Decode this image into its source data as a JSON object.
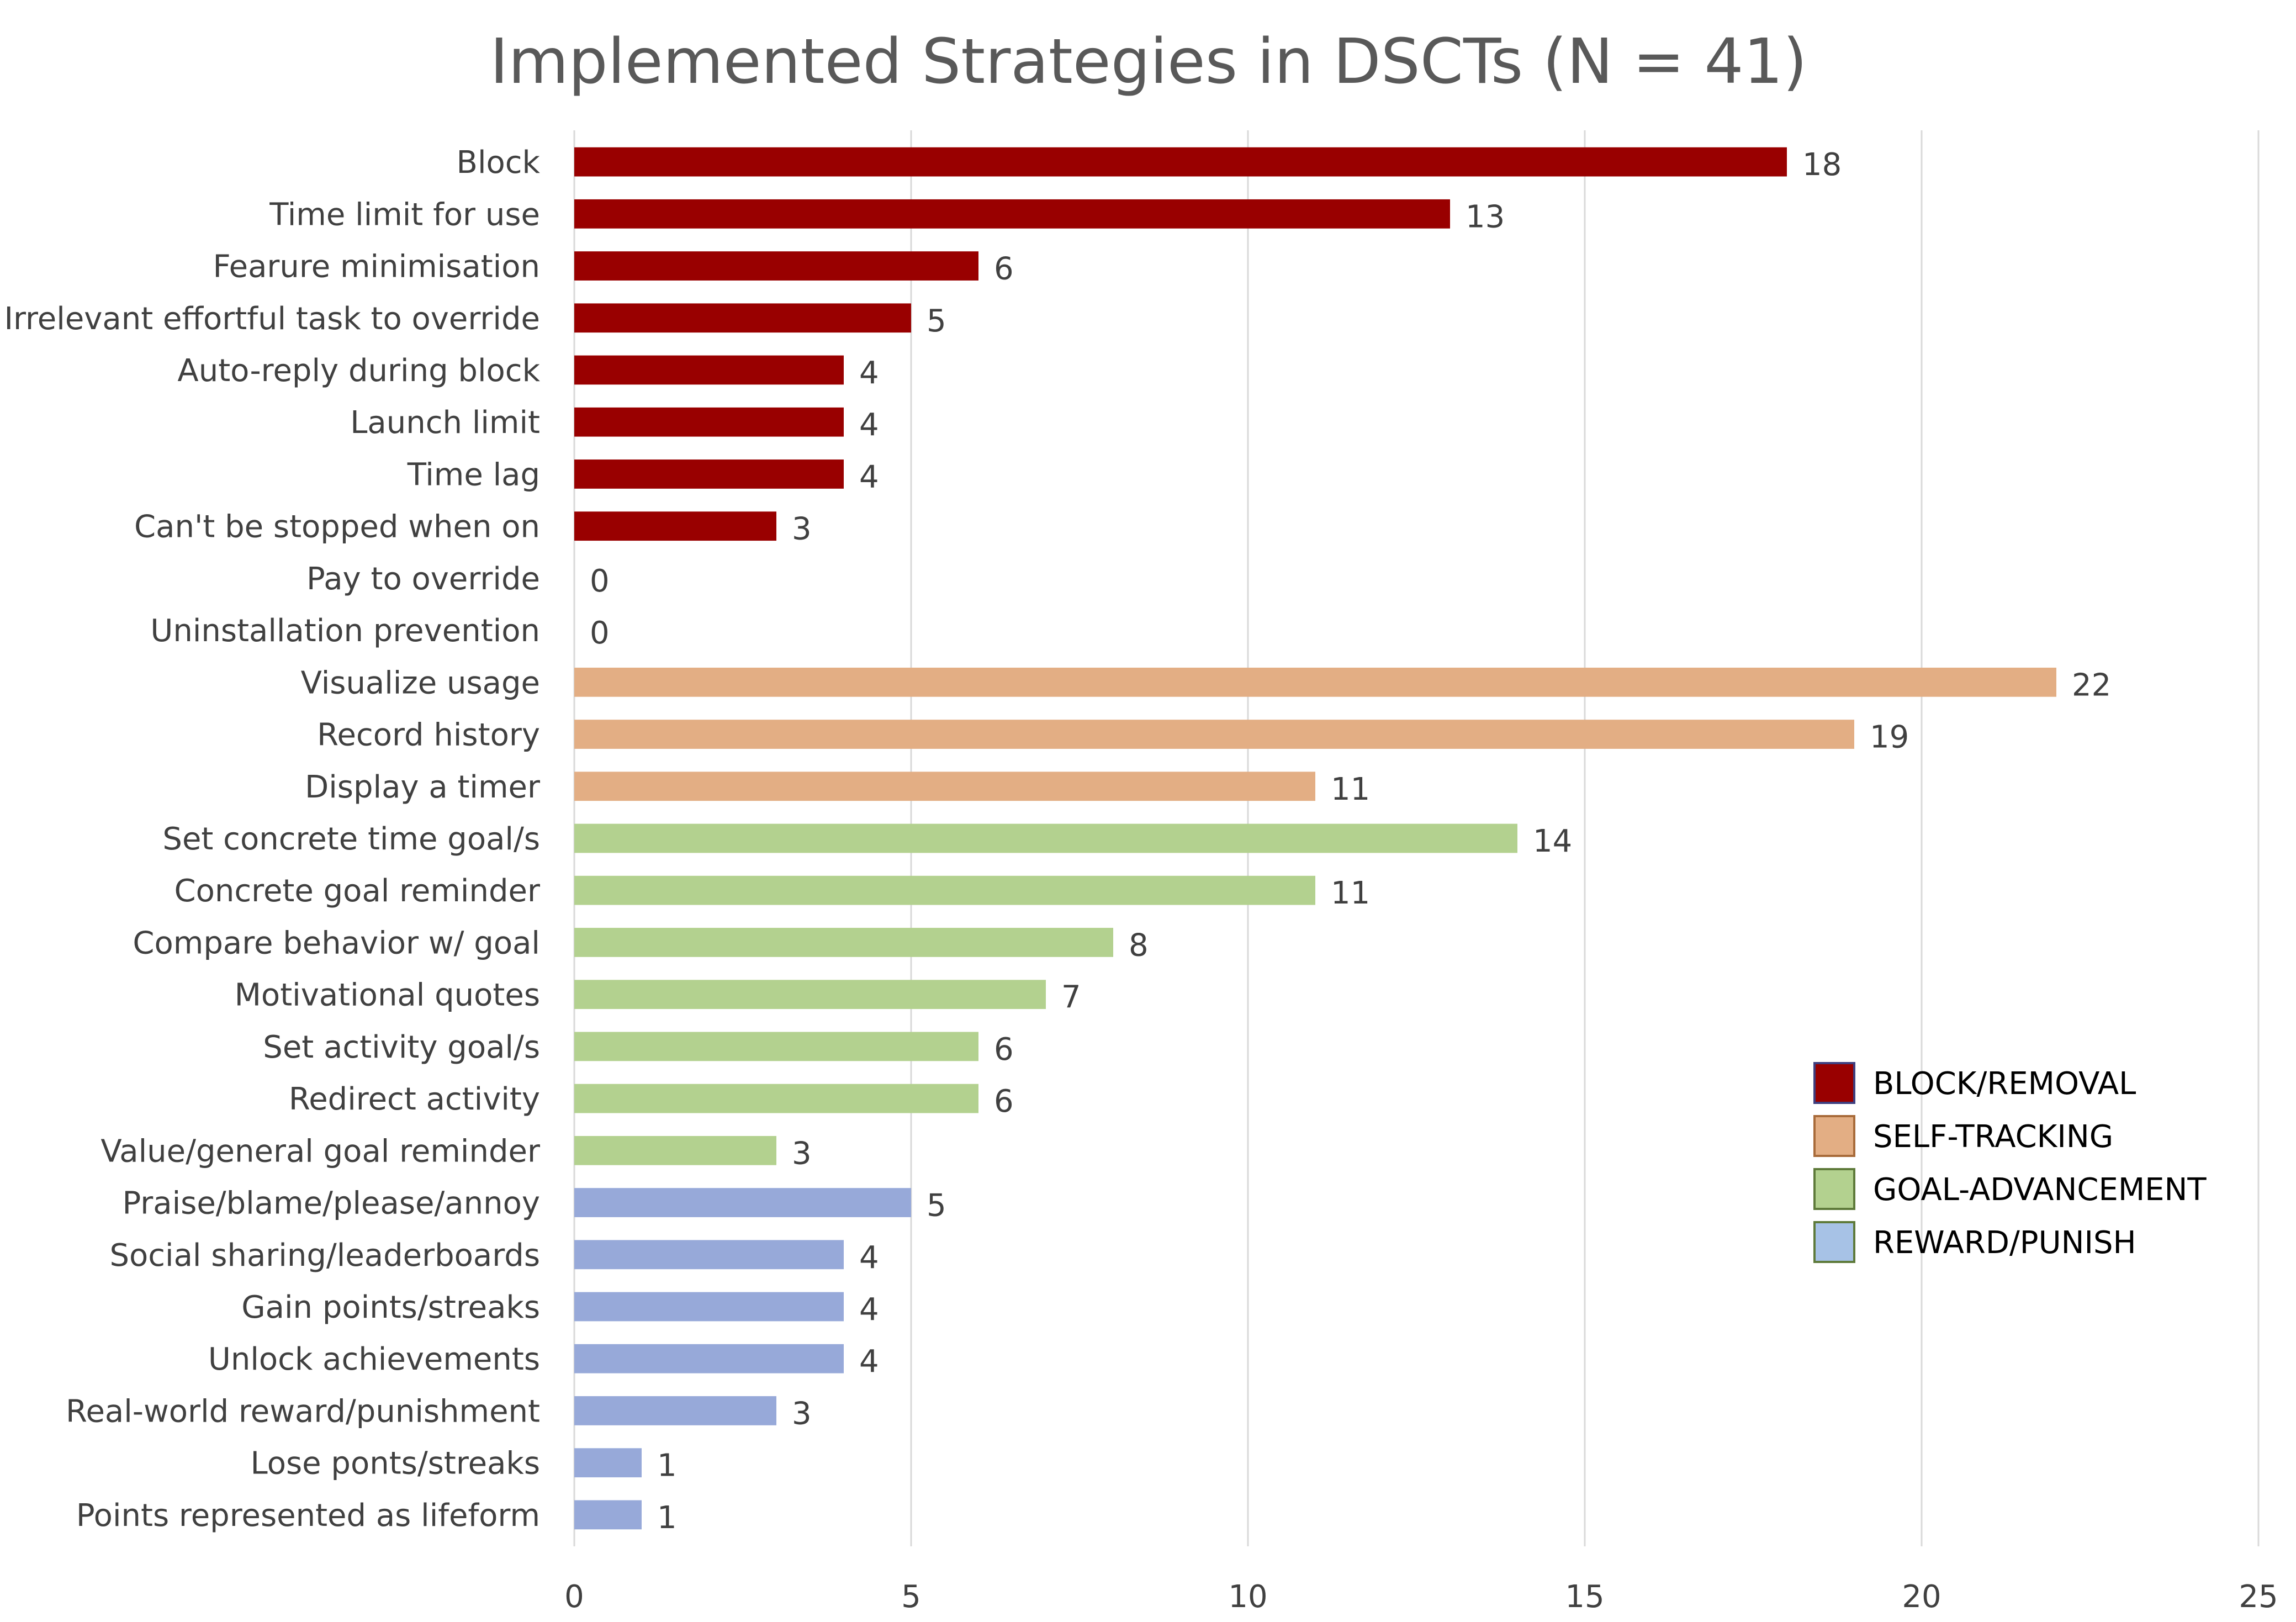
{
  "chart_data": {
    "type": "bar",
    "orientation": "horizontal",
    "title": "Implemented Strategies in DSCTs (N = 41)",
    "xlabel": "",
    "ylabel": "",
    "xlim": [
      0,
      25
    ],
    "xticks": [
      0,
      5,
      10,
      15,
      20,
      25
    ],
    "grid": "vertical",
    "legend_position": "right",
    "groups": [
      {
        "name": "BLOCK/REMOVAL",
        "color": "#990000",
        "swatch_border": "#3f3f7f"
      },
      {
        "name": "SELF-TRACKING",
        "color": "#e3ae84",
        "swatch_border": "#a86b3a"
      },
      {
        "name": "GOAL-ADVANCEMENT",
        "color": "#b3d18f",
        "swatch_border": "#5e7a3a"
      },
      {
        "name": "REWARD/PUNISH",
        "color": "#a7c2e6",
        "swatch_border": "#5e7a3a"
      }
    ],
    "bar_colors": {
      "BLOCK/REMOVAL": "#990000",
      "SELF-TRACKING": "#e3ae84",
      "GOAL-ADVANCEMENT": "#b3d18f",
      "REWARD/PUNISH": "#97a9d9"
    },
    "bars": [
      {
        "label": "Block",
        "value": 18,
        "group": "BLOCK/REMOVAL"
      },
      {
        "label": "Time limit for use",
        "value": 13,
        "group": "BLOCK/REMOVAL"
      },
      {
        "label": "Fearure minimisation",
        "value": 6,
        "group": "BLOCK/REMOVAL"
      },
      {
        "label": "Irrelevant effortful task to override",
        "value": 5,
        "group": "BLOCK/REMOVAL"
      },
      {
        "label": "Auto-reply during block",
        "value": 4,
        "group": "BLOCK/REMOVAL"
      },
      {
        "label": "Launch limit",
        "value": 4,
        "group": "BLOCK/REMOVAL"
      },
      {
        "label": "Time lag",
        "value": 4,
        "group": "BLOCK/REMOVAL"
      },
      {
        "label": "Can't be stopped when on",
        "value": 3,
        "group": "BLOCK/REMOVAL"
      },
      {
        "label": "Pay to override",
        "value": 0,
        "group": "BLOCK/REMOVAL"
      },
      {
        "label": "Uninstallation prevention",
        "value": 0,
        "group": "BLOCK/REMOVAL"
      },
      {
        "label": "Visualize usage",
        "value": 22,
        "group": "SELF-TRACKING"
      },
      {
        "label": "Record history",
        "value": 19,
        "group": "SELF-TRACKING"
      },
      {
        "label": "Display a timer",
        "value": 11,
        "group": "SELF-TRACKING"
      },
      {
        "label": "Set concrete time goal/s",
        "value": 14,
        "group": "GOAL-ADVANCEMENT"
      },
      {
        "label": "Concrete goal reminder",
        "value": 11,
        "group": "GOAL-ADVANCEMENT"
      },
      {
        "label": "Compare behavior w/ goal",
        "value": 8,
        "group": "GOAL-ADVANCEMENT"
      },
      {
        "label": "Motivational quotes",
        "value": 7,
        "group": "GOAL-ADVANCEMENT"
      },
      {
        "label": "Set activity goal/s",
        "value": 6,
        "group": "GOAL-ADVANCEMENT"
      },
      {
        "label": "Redirect activity",
        "value": 6,
        "group": "GOAL-ADVANCEMENT"
      },
      {
        "label": "Value/general goal reminder",
        "value": 3,
        "group": "GOAL-ADVANCEMENT"
      },
      {
        "label": "Praise/blame/please/annoy",
        "value": 5,
        "group": "REWARD/PUNISH"
      },
      {
        "label": "Social sharing/leaderboards",
        "value": 4,
        "group": "REWARD/PUNISH"
      },
      {
        "label": "Gain points/streaks",
        "value": 4,
        "group": "REWARD/PUNISH"
      },
      {
        "label": "Unlock achievements",
        "value": 4,
        "group": "REWARD/PUNISH"
      },
      {
        "label": "Real-world reward/punishment",
        "value": 3,
        "group": "REWARD/PUNISH"
      },
      {
        "label": "Lose ponts/streaks",
        "value": 1,
        "group": "REWARD/PUNISH"
      },
      {
        "label": "Points represented as lifeform",
        "value": 1,
        "group": "REWARD/PUNISH"
      }
    ]
  }
}
